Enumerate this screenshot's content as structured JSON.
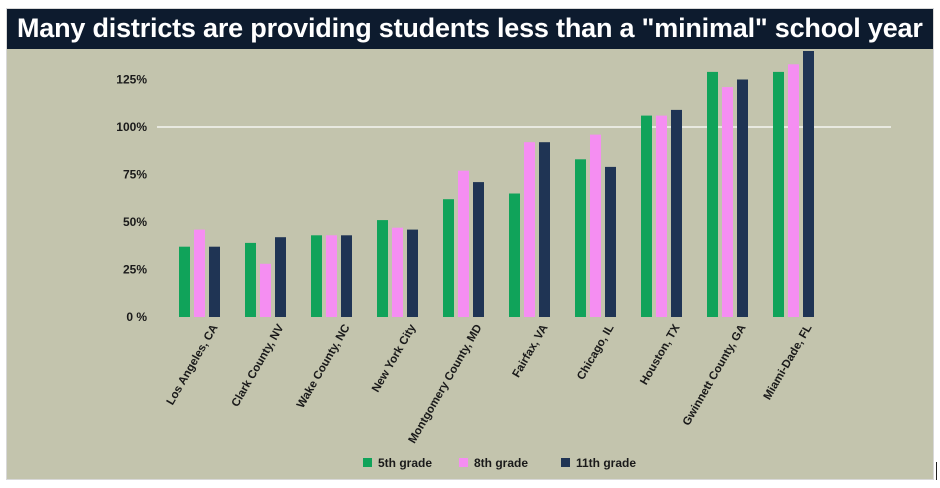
{
  "title": "Many districts are providing students less than a \"minimal\" school year",
  "colors": {
    "background": "#c3c4ad",
    "title_bar": "#0d1b2e",
    "title_text": "#ffffff",
    "reference_line": "#ffffff"
  },
  "chart_data": {
    "type": "bar",
    "title": "Many districts are providing students less than a \"minimal\" school year",
    "xlabel": "",
    "ylabel": "",
    "categories": [
      "Los Angeles, CA",
      "Clark County, NV",
      "Wake County, NC",
      "New York City",
      "Montgomery County, MD",
      "Fairfax, VA",
      "Chicago, IL",
      "Houston, TX",
      "Gwinnett County, GA",
      "Miami-Dade, FL"
    ],
    "series": [
      {
        "name": "5th grade",
        "color": "#10a35a",
        "values": [
          37,
          39,
          43,
          51,
          62,
          65,
          83,
          106,
          129,
          129
        ]
      },
      {
        "name": "8th grade",
        "color": "#f58ef2",
        "values": [
          46,
          28,
          43,
          47,
          77,
          92,
          96,
          106,
          121,
          133
        ]
      },
      {
        "name": "11th grade",
        "color": "#1f3454",
        "values": [
          37,
          42,
          43,
          46,
          71,
          92,
          79,
          109,
          125,
          140
        ]
      }
    ],
    "yticks": [
      0,
      25,
      50,
      75,
      100,
      125
    ],
    "ytick_labels": [
      "0 %",
      "25%",
      "50%",
      "75%",
      "100%",
      "125%"
    ],
    "ylim": [
      0,
      140
    ],
    "reference_line": 100,
    "grid": false,
    "legend_position": "bottom-center"
  }
}
